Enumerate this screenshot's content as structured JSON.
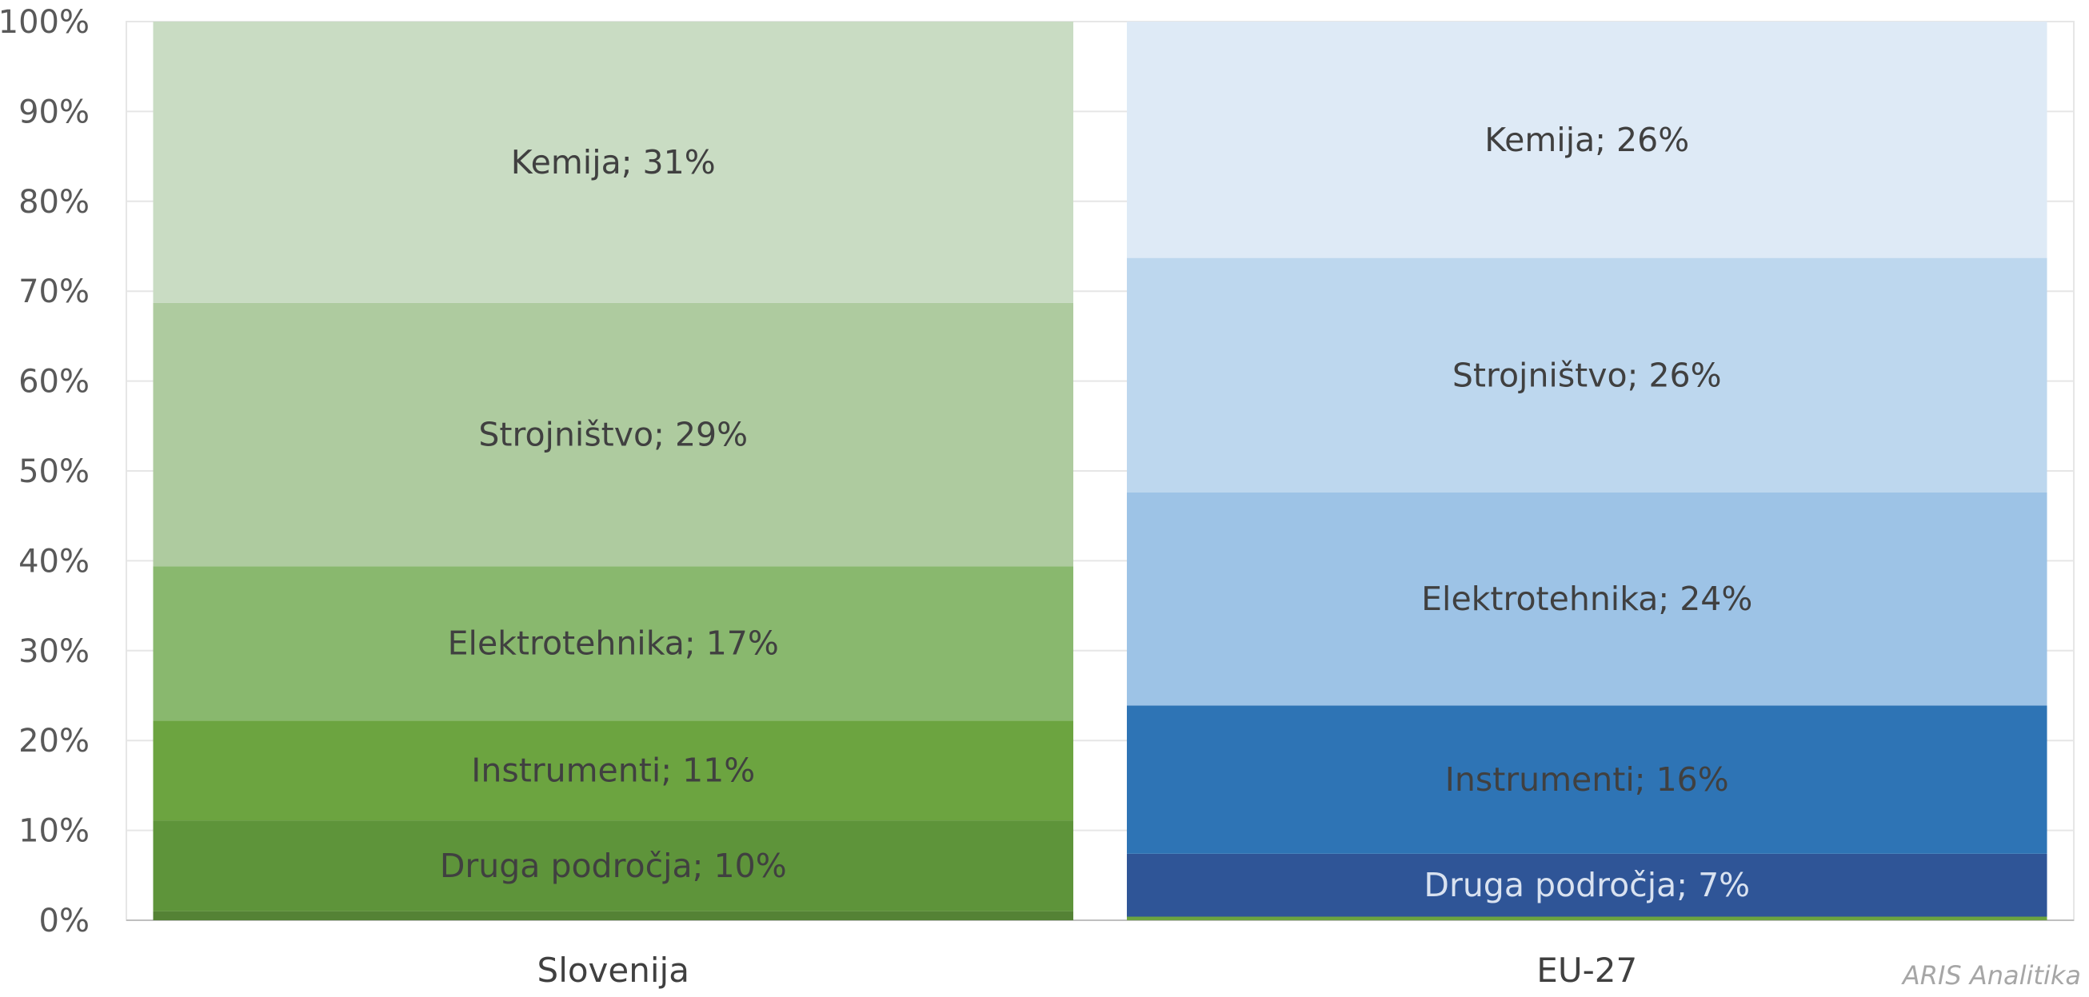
{
  "watermark": "ARIS Analitika",
  "chart_data": {
    "type": "bar",
    "stacked": true,
    "percent_stacked": true,
    "categories": [
      "Slovenija",
      "EU-27"
    ],
    "ylim": [
      0,
      100
    ],
    "yticks": [
      "0%",
      "10%",
      "20%",
      "30%",
      "40%",
      "50%",
      "60%",
      "70%",
      "80%",
      "90%",
      "100%"
    ],
    "grid": true,
    "bars": [
      {
        "category": "Slovenija",
        "segments": [
          {
            "value": 1,
            "label": "",
            "color": "#548235",
            "text_color": "#404040"
          },
          {
            "value": 10,
            "label": "Druga področja; 10%",
            "color": "#5e943a",
            "text_color": "#404040"
          },
          {
            "value": 11,
            "label": "Instrumenti; 11%",
            "color": "#6ca440",
            "text_color": "#404040"
          },
          {
            "value": 17,
            "label": "Elektrotehnika; 17%",
            "color": "#89b86e",
            "text_color": "#404040"
          },
          {
            "value": 29,
            "label": "Strojništvo; 29%",
            "color": "#aecb9f",
            "text_color": "#404040"
          },
          {
            "value": 31,
            "label": "Kemija; 31%",
            "color": "#c9dcc3",
            "text_color": "#404040"
          }
        ]
      },
      {
        "category": "EU-27",
        "segments": [
          {
            "value": 0.4,
            "label": "",
            "color": "#6ca440",
            "text_color": "#404040"
          },
          {
            "value": 7,
            "label": "Druga področja; 7%",
            "color": "#2f5597",
            "text_color": "#d9e2f0"
          },
          {
            "value": 16.5,
            "label": "Instrumenti; 16%",
            "color": "#2e74b5",
            "text_color": "#404040"
          },
          {
            "value": 23.7,
            "label": "Elektrotehnika; 24%",
            "color": "#9dc3e6",
            "text_color": "#404040"
          },
          {
            "value": 26.1,
            "label": "Strojništvo; 26%",
            "color": "#bdd7ee",
            "text_color": "#404040"
          },
          {
            "value": 26.3,
            "label": "Kemija; 26%",
            "color": "#deeaf6",
            "text_color": "#404040"
          }
        ]
      }
    ]
  }
}
